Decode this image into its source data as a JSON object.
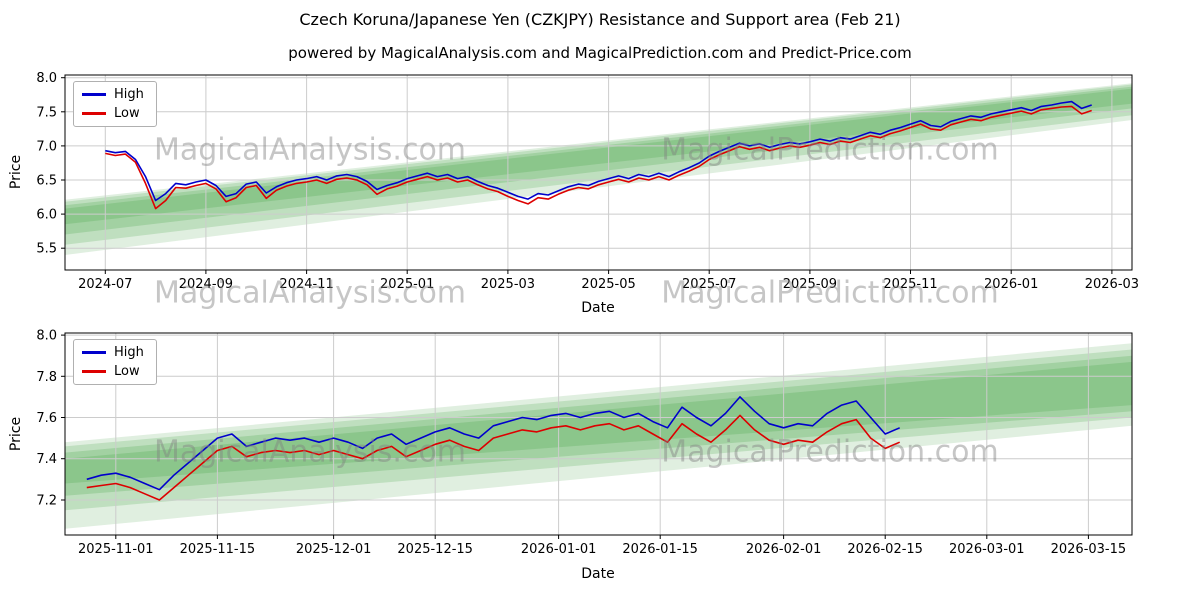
{
  "page": {
    "title": "Czech Koruna/Japanese Yen (CZKJPY) Resistance and Support area (Feb 21)",
    "subtitle": "powered by MagicalAnalysis.com and MagicalPrediction.com and Predict-Price.com"
  },
  "watermarks": {
    "left": "MagicalAnalysis.com",
    "right": "MagicalPrediction.com"
  },
  "colors": {
    "high": "#0000cc",
    "low": "#dd0000",
    "band": "#3c9e3c",
    "grid": "#cccccc",
    "spine": "#000000"
  },
  "chart_data": [
    {
      "type": "line",
      "xlabel": "Date",
      "ylabel": "Price",
      "xlim": [
        -0.8,
        20.4
      ],
      "ylim": [
        5.18,
        8.04
      ],
      "grid": true,
      "legend_position": "upper-left",
      "xticks": [
        {
          "pos": 0,
          "label": "2024-07"
        },
        {
          "pos": 2,
          "label": "2024-09"
        },
        {
          "pos": 4,
          "label": "2024-11"
        },
        {
          "pos": 6,
          "label": "2025-01"
        },
        {
          "pos": 8,
          "label": "2025-03"
        },
        {
          "pos": 10,
          "label": "2025-05"
        },
        {
          "pos": 12,
          "label": "2025-07"
        },
        {
          "pos": 14,
          "label": "2025-09"
        },
        {
          "pos": 16,
          "label": "2025-11"
        },
        {
          "pos": 18,
          "label": "2026-01"
        },
        {
          "pos": 20,
          "label": "2026-03"
        }
      ],
      "yticks": [
        {
          "pos": 5.5,
          "label": "5.5"
        },
        {
          "pos": 6.0,
          "label": "6.0"
        },
        {
          "pos": 6.5,
          "label": "6.5"
        },
        {
          "pos": 7.0,
          "label": "7.0"
        },
        {
          "pos": 7.5,
          "label": "7.5"
        },
        {
          "pos": 8.0,
          "label": "8.0"
        }
      ],
      "x_start": 0,
      "x_step": 0.2,
      "series": [
        {
          "name": "High",
          "color": "#0000cc",
          "values": [
            6.93,
            6.9,
            6.92,
            6.8,
            6.55,
            6.2,
            6.3,
            6.45,
            6.43,
            6.47,
            6.5,
            6.42,
            6.26,
            6.3,
            6.44,
            6.47,
            6.31,
            6.4,
            6.46,
            6.5,
            6.52,
            6.55,
            6.5,
            6.56,
            6.58,
            6.55,
            6.48,
            6.36,
            6.42,
            6.46,
            6.52,
            6.56,
            6.6,
            6.55,
            6.58,
            6.52,
            6.55,
            6.48,
            6.42,
            6.38,
            6.32,
            6.26,
            6.22,
            6.3,
            6.28,
            6.34,
            6.4,
            6.44,
            6.42,
            6.48,
            6.52,
            6.56,
            6.52,
            6.58,
            6.55,
            6.6,
            6.55,
            6.62,
            6.68,
            6.75,
            6.85,
            6.92,
            6.98,
            7.04,
            7.0,
            7.03,
            6.98,
            7.02,
            7.05,
            7.03,
            7.06,
            7.1,
            7.07,
            7.12,
            7.1,
            7.15,
            7.2,
            7.17,
            7.23,
            7.27,
            7.32,
            7.37,
            7.3,
            7.28,
            7.36,
            7.4,
            7.44,
            7.42,
            7.47,
            7.5,
            7.53,
            7.56,
            7.52,
            7.58,
            7.6,
            7.63,
            7.65,
            7.55,
            7.6
          ]
        },
        {
          "name": "Low",
          "color": "#dd0000",
          "values": [
            6.89,
            6.86,
            6.88,
            6.76,
            6.45,
            6.08,
            6.2,
            6.39,
            6.38,
            6.42,
            6.45,
            6.37,
            6.18,
            6.24,
            6.39,
            6.42,
            6.23,
            6.35,
            6.41,
            6.45,
            6.47,
            6.5,
            6.45,
            6.51,
            6.53,
            6.5,
            6.43,
            6.29,
            6.37,
            6.41,
            6.47,
            6.51,
            6.55,
            6.5,
            6.53,
            6.47,
            6.5,
            6.43,
            6.37,
            6.33,
            6.26,
            6.2,
            6.15,
            6.24,
            6.22,
            6.29,
            6.35,
            6.39,
            6.37,
            6.43,
            6.47,
            6.51,
            6.47,
            6.53,
            6.5,
            6.55,
            6.5,
            6.57,
            6.63,
            6.7,
            6.8,
            6.87,
            6.93,
            6.99,
            6.95,
            6.98,
            6.93,
            6.97,
            7.0,
            6.98,
            7.01,
            7.05,
            7.02,
            7.07,
            7.05,
            7.1,
            7.15,
            7.12,
            7.18,
            7.22,
            7.27,
            7.32,
            7.25,
            7.23,
            7.31,
            7.35,
            7.39,
            7.37,
            7.42,
            7.45,
            7.48,
            7.51,
            7.47,
            7.53,
            7.55,
            7.57,
            7.58,
            7.47,
            7.52
          ]
        }
      ],
      "bands": [
        {
          "left": [
            6.21,
            5.4
          ],
          "right": [
            7.92,
            7.38
          ],
          "opacity": 0.16
        },
        {
          "left": [
            6.18,
            5.55
          ],
          "right": [
            7.9,
            7.45
          ],
          "opacity": 0.2
        },
        {
          "left": [
            6.13,
            5.7
          ],
          "right": [
            7.87,
            7.55
          ],
          "opacity": 0.22
        },
        {
          "left": [
            6.08,
            5.85
          ],
          "right": [
            7.84,
            7.62
          ],
          "opacity": 0.22
        }
      ]
    },
    {
      "type": "line",
      "xlabel": "Date",
      "ylabel": "Price",
      "xlim": [
        -1,
        146
      ],
      "ylim": [
        7.03,
        8.01
      ],
      "grid": true,
      "legend_position": "upper-left",
      "xticks": [
        {
          "pos": 6,
          "label": "2025-11-01"
        },
        {
          "pos": 20,
          "label": "2025-11-15"
        },
        {
          "pos": 36,
          "label": "2025-12-01"
        },
        {
          "pos": 50,
          "label": "2025-12-15"
        },
        {
          "pos": 67,
          "label": "2026-01-01"
        },
        {
          "pos": 81,
          "label": "2026-01-15"
        },
        {
          "pos": 98,
          "label": "2026-02-01"
        },
        {
          "pos": 112,
          "label": "2026-02-15"
        },
        {
          "pos": 126,
          "label": "2026-03-01"
        },
        {
          "pos": 140,
          "label": "2026-03-15"
        }
      ],
      "yticks": [
        {
          "pos": 7.2,
          "label": "7.2"
        },
        {
          "pos": 7.4,
          "label": "7.4"
        },
        {
          "pos": 7.6,
          "label": "7.6"
        },
        {
          "pos": 7.8,
          "label": "7.8"
        },
        {
          "pos": 8.0,
          "label": "8.0"
        }
      ],
      "x_start": 2,
      "x_step": 2,
      "series": [
        {
          "name": "High",
          "color": "#0000cc",
          "values": [
            7.3,
            7.32,
            7.33,
            7.31,
            7.28,
            7.25,
            7.32,
            7.38,
            7.44,
            7.5,
            7.52,
            7.46,
            7.48,
            7.5,
            7.49,
            7.5,
            7.48,
            7.5,
            7.48,
            7.45,
            7.5,
            7.52,
            7.47,
            7.5,
            7.53,
            7.55,
            7.52,
            7.5,
            7.56,
            7.58,
            7.6,
            7.59,
            7.61,
            7.62,
            7.6,
            7.62,
            7.63,
            7.6,
            7.62,
            7.58,
            7.55,
            7.65,
            7.6,
            7.56,
            7.62,
            7.7,
            7.63,
            7.57,
            7.55,
            7.57,
            7.56,
            7.62,
            7.66,
            7.68,
            7.6,
            7.52,
            7.55
          ]
        },
        {
          "name": "Low",
          "color": "#dd0000",
          "values": [
            7.26,
            7.27,
            7.28,
            7.26,
            7.23,
            7.2,
            7.26,
            7.32,
            7.38,
            7.44,
            7.46,
            7.41,
            7.43,
            7.44,
            7.43,
            7.44,
            7.42,
            7.44,
            7.42,
            7.4,
            7.44,
            7.46,
            7.41,
            7.44,
            7.47,
            7.49,
            7.46,
            7.44,
            7.5,
            7.52,
            7.54,
            7.53,
            7.55,
            7.56,
            7.54,
            7.56,
            7.57,
            7.54,
            7.56,
            7.52,
            7.48,
            7.57,
            7.52,
            7.48,
            7.54,
            7.61,
            7.54,
            7.49,
            7.47,
            7.49,
            7.48,
            7.53,
            7.57,
            7.59,
            7.5,
            7.45,
            7.48
          ]
        }
      ],
      "bands": [
        {
          "left": [
            7.48,
            7.06
          ],
          "right": [
            7.96,
            7.56
          ],
          "opacity": 0.16
        },
        {
          "left": [
            7.46,
            7.15
          ],
          "right": [
            7.93,
            7.6
          ],
          "opacity": 0.2
        },
        {
          "left": [
            7.43,
            7.22
          ],
          "right": [
            7.9,
            7.63
          ],
          "opacity": 0.22
        },
        {
          "left": [
            7.4,
            7.28
          ],
          "right": [
            7.87,
            7.66
          ],
          "opacity": 0.22
        }
      ]
    }
  ]
}
